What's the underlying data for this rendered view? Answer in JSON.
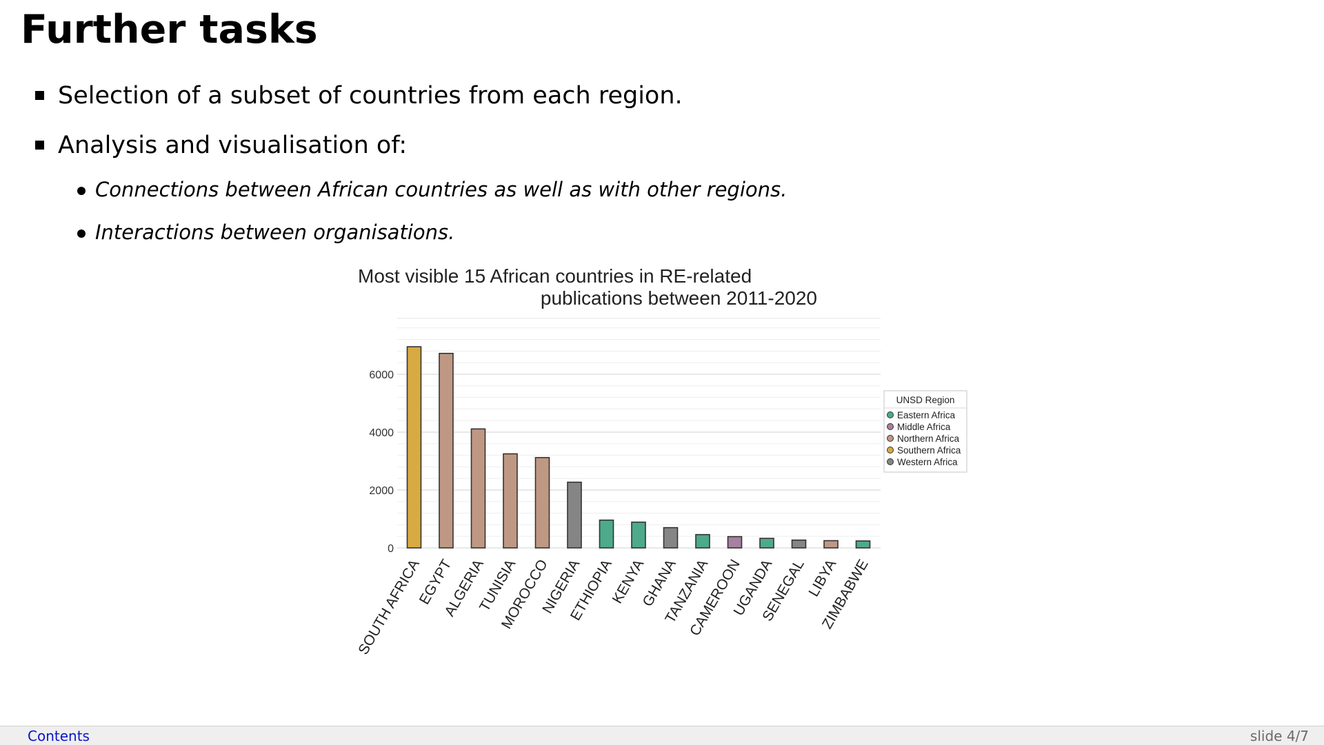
{
  "slide": {
    "title": "Further tasks",
    "bullets": [
      "Selection of a subset of countries from each region.",
      "Analysis and visualisation of:"
    ],
    "subbullets": [
      "Connections between African countries as well as with other regions.",
      "Interactions between organisations."
    ]
  },
  "footer": {
    "contents_link": "Contents",
    "slide_number": "slide 4/7"
  },
  "chart_data": {
    "type": "bar",
    "title_lines": [
      "Most visible 15 African countries in RE-related",
      "publications between 2011-2020"
    ],
    "xlabel": "",
    "ylabel": "",
    "ylim": [
      0,
      8000
    ],
    "yticks": [
      0,
      2000,
      4000,
      6000
    ],
    "grid": true,
    "legend": {
      "title": "UNSD Region",
      "position": "right",
      "entries": [
        {
          "name": "Eastern Africa",
          "color": "#4daa8a"
        },
        {
          "name": "Middle Africa",
          "color": "#a880a0"
        },
        {
          "name": "Northern Africa",
          "color": "#bf9883"
        },
        {
          "name": "Southern Africa",
          "color": "#d7ab42"
        },
        {
          "name": "Western Africa",
          "color": "#858585"
        }
      ]
    },
    "categories": [
      "SOUTH AFRICA",
      "EGYPT",
      "ALGERIA",
      "TUNISIA",
      "MOROCCO",
      "NIGERIA",
      "ETHIOPIA",
      "KENYA",
      "GHANA",
      "TANZANIA",
      "CAMEROON",
      "UGANDA",
      "SENEGAL",
      "LIBYA",
      "ZIMBABWE"
    ],
    "values": [
      6950,
      6720,
      4110,
      3250,
      3120,
      2270,
      960,
      890,
      700,
      460,
      390,
      330,
      270,
      250,
      240
    ],
    "regions": [
      "Southern Africa",
      "Northern Africa",
      "Northern Africa",
      "Northern Africa",
      "Northern Africa",
      "Western Africa",
      "Eastern Africa",
      "Eastern Africa",
      "Western Africa",
      "Eastern Africa",
      "Middle Africa",
      "Eastern Africa",
      "Western Africa",
      "Northern Africa",
      "Eastern Africa"
    ]
  }
}
